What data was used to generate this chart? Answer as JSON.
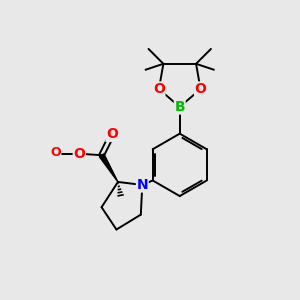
{
  "bg_color": "#e8e8e8",
  "atom_colors": {
    "O": "#ff0000",
    "N": "#0000ff",
    "B": "#00bb00"
  },
  "bond_color": "#000000",
  "bond_width": 1.4,
  "font_size_atom": 10,
  "fig_size": [
    3.0,
    3.0
  ],
  "dpi": 100,
  "xlim": [
    0,
    10
  ],
  "ylim": [
    0,
    10
  ]
}
